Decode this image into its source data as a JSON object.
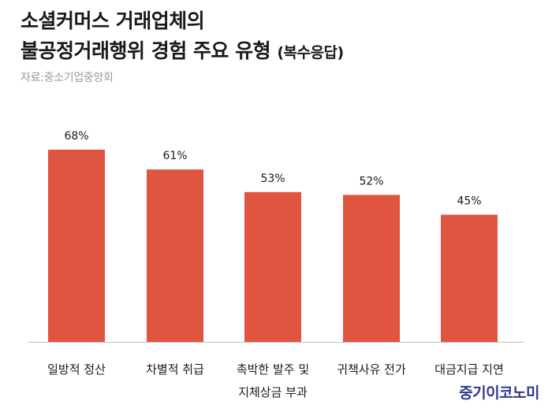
{
  "title": {
    "line1": "소셜커머스 거래업체의",
    "line2": "불공정거래행위 경험 주요 유형",
    "suffix": "(복수응답)"
  },
  "source": "자료:중소기업중앙회",
  "brand": "중기이코노미",
  "colors": {
    "bar": "#e05540",
    "axis": "#bfbfbf",
    "text": "#1a1a1a"
  },
  "chart_data": {
    "type": "bar",
    "categories": [
      [
        "일방적 정산"
      ],
      [
        "차별적 취급"
      ],
      [
        "촉박한 발주 및",
        "지체상금 부과"
      ],
      [
        "귀책사유 전가"
      ],
      [
        "대금지급 지연"
      ]
    ],
    "values": [
      68,
      61,
      53,
      52,
      45
    ],
    "value_labels": [
      "68%",
      "61%",
      "53%",
      "52%",
      "45%"
    ],
    "ylim": [
      0,
      75
    ],
    "grid": false,
    "xlabel": "",
    "ylabel": ""
  }
}
